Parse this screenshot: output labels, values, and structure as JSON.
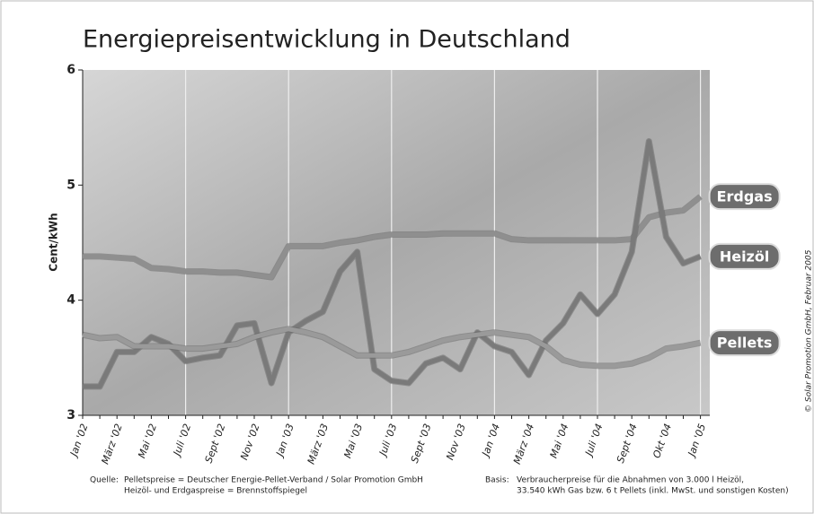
{
  "chart_data": {
    "type": "line",
    "title": "Energiepreisentwicklung in Deutschland",
    "y_label": "Cent/kWh",
    "categories": [
      "Jan '02",
      null,
      "März '02",
      null,
      "Mai '02",
      null,
      "Juli '02",
      null,
      "Sept '02",
      null,
      "Nov '02",
      null,
      "Jan '03",
      null,
      "März '03",
      null,
      "Mai '03",
      null,
      "Juli '03",
      null,
      "Sept '03",
      null,
      "Nov '03",
      null,
      "Jan '04",
      null,
      "März '04",
      null,
      "Mai '04",
      null,
      "Juli '04",
      null,
      "Sept '04",
      null,
      "Okt '04",
      null,
      "Jan '05"
    ],
    "series": [
      {
        "name": "Erdgas",
        "color": "#8f8f8f",
        "values": [
          4.38,
          4.38,
          4.37,
          4.36,
          4.28,
          4.27,
          4.25,
          4.25,
          4.24,
          4.24,
          4.22,
          4.2,
          4.47,
          4.47,
          4.47,
          4.5,
          4.52,
          4.55,
          4.57,
          4.57,
          4.57,
          4.58,
          4.58,
          4.58,
          4.58,
          4.53,
          4.52,
          4.52,
          4.52,
          4.52,
          4.52,
          4.52,
          4.53,
          4.72,
          4.76,
          4.78,
          4.9
        ]
      },
      {
        "name": "Heizöl",
        "color": "#7a7a7a",
        "values": [
          3.25,
          3.25,
          3.55,
          3.55,
          3.68,
          3.62,
          3.47,
          3.5,
          3.52,
          3.78,
          3.8,
          3.28,
          3.72,
          3.82,
          3.9,
          4.25,
          4.42,
          3.4,
          3.3,
          3.28,
          3.45,
          3.5,
          3.4,
          3.72,
          3.6,
          3.55,
          3.35,
          3.65,
          3.8,
          4.05,
          3.88,
          4.05,
          4.42,
          5.38,
          4.55,
          4.32,
          4.38
        ]
      },
      {
        "name": "Pellets",
        "color": "#9a9a9a",
        "values": [
          3.7,
          3.67,
          3.68,
          3.6,
          3.6,
          3.6,
          3.58,
          3.58,
          3.6,
          3.62,
          3.68,
          3.72,
          3.75,
          3.72,
          3.68,
          3.6,
          3.52,
          3.52,
          3.52,
          3.55,
          3.6,
          3.65,
          3.68,
          3.7,
          3.72,
          3.7,
          3.68,
          3.6,
          3.48,
          3.44,
          3.43,
          3.43,
          3.45,
          3.5,
          3.58,
          3.6,
          3.63
        ]
      }
    ],
    "ylim": [
      3,
      6
    ],
    "yticks": [
      3,
      4,
      5,
      6
    ],
    "grid": true,
    "annotations": {
      "source_label": "Quelle:",
      "source_1": "Pelletspreise = Deutscher Energie-Pellet-Verband / Solar Promotion GmbH",
      "source_2": "Heizöl- und Erdgaspreise = Brennstoffspiegel",
      "basis_label": "Basis:",
      "basis_1": "Verbraucherpreise für die Abnahmen von 3.000 l Heizöl,",
      "basis_2": "33.540 kWh Gas bzw. 6 t Pellets (inkl. MwSt. und sonstigen Kosten)",
      "copyright": "© Solar Promotion GmbH, Februar 2005"
    }
  }
}
